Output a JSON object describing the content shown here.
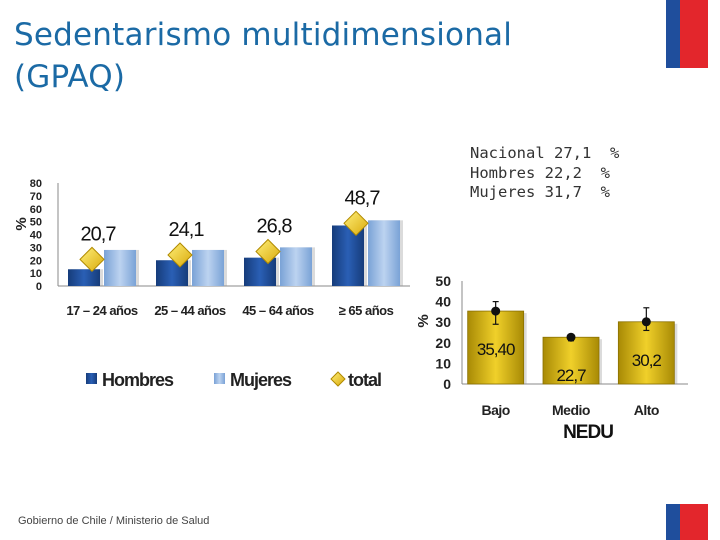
{
  "slide": {
    "title_line1": "Sedentarismo multidimensional",
    "title_line2": "(GPAQ)",
    "summary": [
      "Nacional 27,1  %",
      "Hombres 22,2  %",
      "Mujeres 31,7  %"
    ],
    "footer": "Gobierno de Chile / Ministerio de Salud"
  },
  "colors": {
    "title": "#1b6aa5",
    "hombres": "#1f4e9c",
    "mujeres": "#8fb4e3",
    "total": "#f2c81e",
    "gold": "#c9a40c"
  },
  "chart_data": [
    {
      "type": "bar",
      "title": "",
      "ylabel": "%",
      "ylim": [
        0,
        80
      ],
      "yticks": [
        0,
        10,
        20,
        30,
        40,
        50,
        60,
        70,
        80
      ],
      "categories": [
        "17 – 24 años",
        "25 – 44 años",
        "45 – 64 años",
        "≥ 65 años"
      ],
      "series": [
        {
          "name": "Hombres",
          "values": [
            13,
            20,
            22,
            47
          ]
        },
        {
          "name": "Mujeres",
          "values": [
            28,
            28,
            30,
            51
          ]
        },
        {
          "name": "total",
          "marker": "diamond",
          "values": [
            20.7,
            24.1,
            26.8,
            48.7
          ],
          "labels": [
            "20,7",
            "24,1",
            "26,8",
            "48,7"
          ]
        }
      ],
      "legend": "bottom"
    },
    {
      "type": "bar",
      "title": "",
      "ylabel": "%",
      "xlabel": "NEDU",
      "ylim": [
        0,
        50
      ],
      "yticks": [
        0,
        10,
        20,
        30,
        40,
        50
      ],
      "categories": [
        "Bajo",
        "Medio",
        "Alto"
      ],
      "values": [
        35.4,
        22.7,
        30.2
      ],
      "labels": [
        "35,40",
        "22,7",
        "30,2"
      ],
      "error_bars": [
        [
          29,
          40
        ],
        [
          21,
          24
        ],
        [
          26,
          37
        ]
      ]
    }
  ]
}
